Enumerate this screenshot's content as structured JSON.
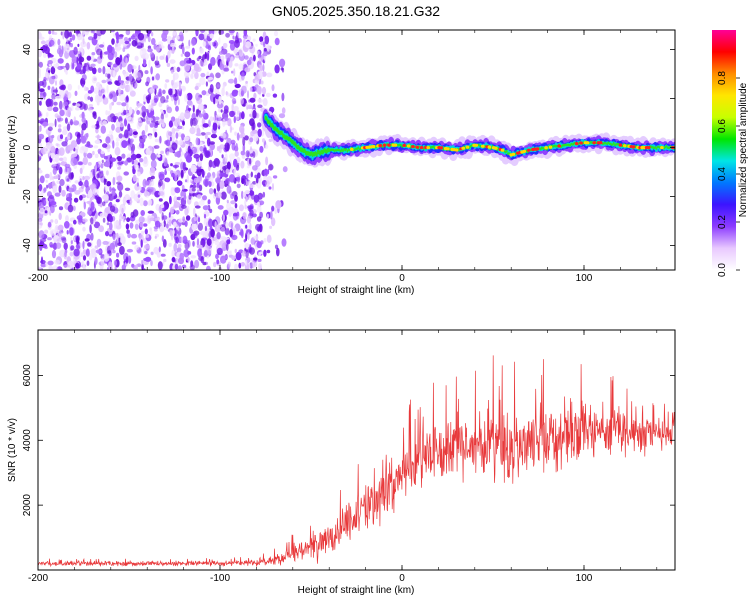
{
  "figure_title": "GN05.2025.350.18.21.G32",
  "chart_data": [
    {
      "type": "heatmap",
      "title": "GN05.2025.350.18.21.G32",
      "xlabel": "Height of straight line (km)",
      "ylabel": "Frequency (Hz)",
      "xlim": [
        -200,
        150
      ],
      "ylim": [
        -50,
        48
      ],
      "x_ticks": [
        -200,
        -100,
        0,
        100
      ],
      "x_tick_labels": [
        "-200",
        "-100",
        "0",
        "100"
      ],
      "y_ticks": [
        40,
        20,
        0,
        -20,
        -40
      ],
      "y_tick_labels": [
        "40",
        "20",
        "0",
        "-20",
        "-40"
      ],
      "noise_region": {
        "x_from": -200,
        "x_to": -75,
        "y_from": -50,
        "y_to": 48
      },
      "signal_track": {
        "x": [
          -75,
          -70,
          -65,
          -60,
          -55,
          -50,
          -45,
          -40,
          -30,
          -20,
          -10,
          0,
          10,
          20,
          30,
          40,
          50,
          55,
          60,
          65,
          70,
          80,
          90,
          100,
          110,
          120,
          130,
          150
        ],
        "frequency": [
          12,
          8,
          5,
          2,
          -1,
          -3,
          -2,
          -1,
          -1,
          0,
          1,
          1,
          0,
          0,
          -1,
          1,
          0,
          -1,
          -3,
          -2,
          -1,
          0,
          1,
          2,
          2,
          1,
          0,
          0
        ]
      },
      "colorbar": {
        "label": "Normalized spectral amplitude",
        "range": [
          0,
          1
        ],
        "ticks": [
          0.0,
          0.2,
          0.4,
          0.6,
          0.8
        ],
        "tick_labels": [
          "0.0",
          "0.2",
          "0.4",
          "0.6",
          "0.8"
        ],
        "colors": [
          "#ffffff",
          "#e8c8ff",
          "#8c3cff",
          "#3c14ff",
          "#0078ff",
          "#00e6e6",
          "#00e600",
          "#c8ff00",
          "#ffe600",
          "#ff8c00",
          "#ff0000",
          "#ff0096"
        ]
      }
    },
    {
      "type": "line",
      "xlabel": "Height of straight line (km)",
      "ylabel": "SNR (10 * v/v)",
      "xlim": [
        -200,
        150
      ],
      "ylim": [
        0,
        7400
      ],
      "x_ticks": [
        -200,
        -100,
        0,
        100
      ],
      "x_tick_labels": [
        "-200",
        "-100",
        "0",
        "100"
      ],
      "y_ticks": [
        2000,
        4000,
        6000
      ],
      "y_tick_labels": [
        "2000",
        "4000",
        "6000"
      ],
      "series": [
        {
          "name": "SNR",
          "color": "#e8393b",
          "envelope_x": [
            -200,
            -150,
            -100,
            -75,
            -65,
            -55,
            -45,
            -35,
            -25,
            -15,
            -5,
            5,
            15,
            25,
            35,
            45,
            55,
            65,
            75,
            85,
            95,
            105,
            115,
            125,
            135,
            145,
            150
          ],
          "mean": [
            200,
            200,
            200,
            250,
            400,
            600,
            800,
            1200,
            1700,
            2200,
            2700,
            3200,
            3600,
            3800,
            4000,
            4000,
            3800,
            3800,
            4100,
            4100,
            4300,
            4300,
            4300,
            4200,
            4300,
            4300,
            4300
          ],
          "spread": [
            120,
            130,
            130,
            200,
            350,
            550,
            800,
            900,
            1100,
            1300,
            1400,
            1500,
            1700,
            1800,
            1900,
            1900,
            2000,
            1900,
            1800,
            1600,
            1500,
            1400,
            1300,
            1300,
            1200,
            1100,
            1100
          ]
        }
      ]
    }
  ]
}
